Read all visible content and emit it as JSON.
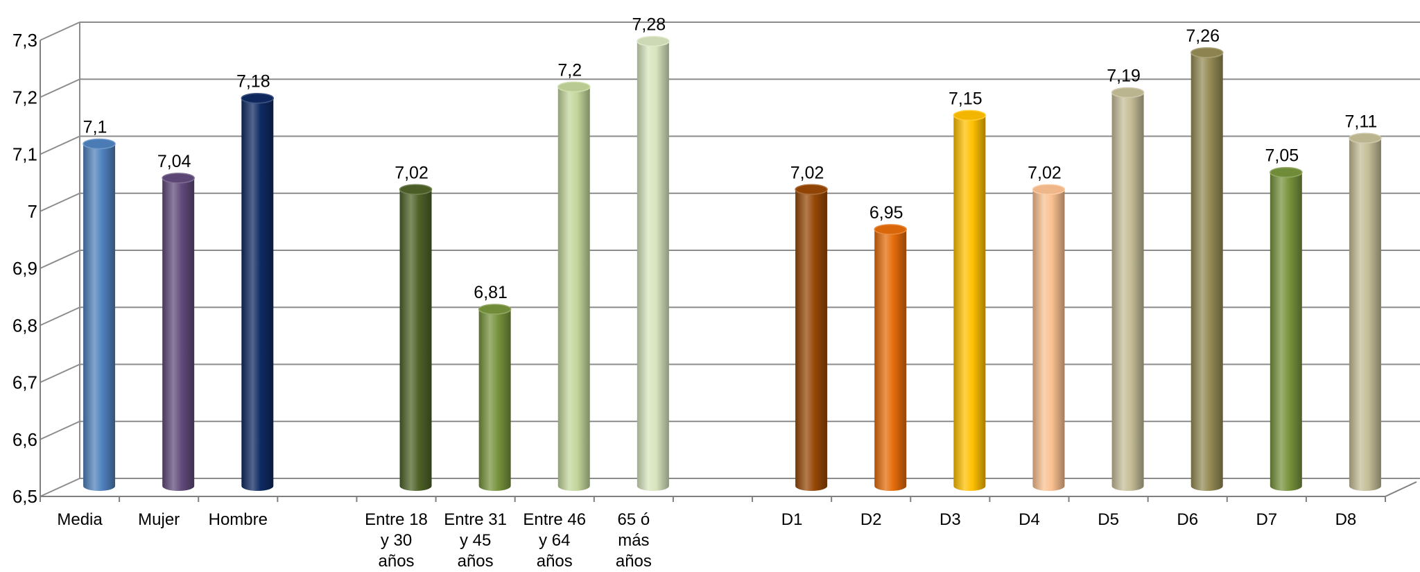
{
  "chart_data": {
    "type": "bar",
    "title": "",
    "xlabel": "",
    "ylabel": "",
    "ylim": [
      6.5,
      7.3
    ],
    "y_ticks": [
      "6,5",
      "6,6",
      "6,7",
      "6,8",
      "6,9",
      "7",
      "7,1",
      "7,2",
      "7,3"
    ],
    "grid": true,
    "style": "3d-cylinder",
    "bars": [
      {
        "label": [
          "Media"
        ],
        "value": 7.1,
        "value_label": "7,1",
        "color": "#4F81BD",
        "slot": 0
      },
      {
        "label": [
          "Mujer"
        ],
        "value": 7.04,
        "value_label": "7,04",
        "color": "#604A7B",
        "slot": 1
      },
      {
        "label": [
          "Hombre"
        ],
        "value": 7.18,
        "value_label": "7,18",
        "color": "#0F2A62",
        "slot": 2
      },
      {
        "label": [
          "Entre 18",
          "y 30",
          "años"
        ],
        "value": 7.02,
        "value_label": "7,02",
        "color": "#4F6228",
        "slot": 4
      },
      {
        "label": [
          "Entre 31",
          "y 45",
          "años"
        ],
        "value": 6.81,
        "value_label": "6,81",
        "color": "#77933C",
        "slot": 5
      },
      {
        "label": [
          "Entre 46",
          "y 64",
          "años"
        ],
        "value": 7.2,
        "value_label": "7,2",
        "color": "#C3D69B",
        "slot": 6
      },
      {
        "label": [
          "65 ó",
          "más",
          "años"
        ],
        "value": 7.28,
        "value_label": "7,28",
        "color": "#D7E4BD",
        "slot": 7
      },
      {
        "label": [
          "D1"
        ],
        "value": 7.02,
        "value_label": "7,02",
        "color": "#974806",
        "slot": 9
      },
      {
        "label": [
          "D2"
        ],
        "value": 6.95,
        "value_label": "6,95",
        "color": "#E46C0A",
        "slot": 10
      },
      {
        "label": [
          "D3"
        ],
        "value": 7.15,
        "value_label": "7,15",
        "color": "#FFC000",
        "slot": 11
      },
      {
        "label": [
          "D4"
        ],
        "value": 7.02,
        "value_label": "7,02",
        "color": "#FAC090",
        "slot": 12
      },
      {
        "label": [
          "D5"
        ],
        "value": 7.19,
        "value_label": "7,19",
        "color": "#C4BD97",
        "slot": 13
      },
      {
        "label": [
          "D6"
        ],
        "value": 7.26,
        "value_label": "7,26",
        "color": "#948A54",
        "slot": 14
      },
      {
        "label": [
          "D7"
        ],
        "value": 7.05,
        "value_label": "7,05",
        "color": "#77933C",
        "slot": 15
      },
      {
        "label": [
          "D8"
        ],
        "value": 7.11,
        "value_label": "7,11",
        "color": "#C4BD97",
        "slot": 16
      }
    ],
    "slot_count": 17
  }
}
